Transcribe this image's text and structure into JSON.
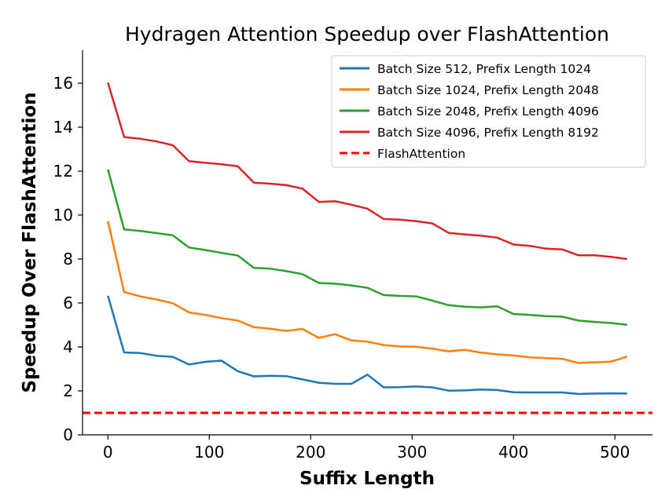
{
  "chart_data": {
    "type": "line",
    "title": "Hydragen Attention Speedup over FlashAttention",
    "xlabel": "Suffix Length",
    "ylabel": "Speedup Over FlashAttention",
    "xlim": [
      -25,
      537
    ],
    "ylim": [
      0,
      17.5
    ],
    "xticks": [
      0,
      100,
      200,
      300,
      400,
      500
    ],
    "yticks": [
      0,
      2,
      4,
      6,
      8,
      10,
      12,
      14,
      16
    ],
    "grid": false,
    "legend_position": "top-right",
    "x": [
      0,
      16,
      32,
      48,
      64,
      80,
      96,
      112,
      128,
      144,
      160,
      176,
      192,
      208,
      224,
      240,
      256,
      272,
      288,
      304,
      320,
      336,
      352,
      368,
      384,
      400,
      416,
      432,
      448,
      464,
      480,
      496,
      512
    ],
    "series": [
      {
        "name": "Batch Size 512, Prefix Length 1024",
        "color": "#1f77b4",
        "style": "solid",
        "values": [
          6.33,
          3.75,
          3.72,
          3.6,
          3.55,
          3.2,
          3.32,
          3.38,
          2.9,
          2.66,
          2.69,
          2.67,
          2.52,
          2.37,
          2.32,
          2.32,
          2.74,
          2.16,
          2.17,
          2.2,
          2.16,
          2.01,
          2.02,
          2.06,
          2.04,
          1.94,
          1.93,
          1.93,
          1.93,
          1.86,
          1.88,
          1.89,
          1.88
        ]
      },
      {
        "name": "Batch Size 1024, Prefix Length 2048",
        "color": "#ff7f0e",
        "style": "solid",
        "values": [
          9.72,
          6.5,
          6.3,
          6.16,
          5.99,
          5.57,
          5.46,
          5.31,
          5.2,
          4.9,
          4.83,
          4.73,
          4.82,
          4.41,
          4.58,
          4.3,
          4.24,
          4.09,
          4.02,
          4.01,
          3.92,
          3.8,
          3.87,
          3.74,
          3.66,
          3.61,
          3.53,
          3.49,
          3.46,
          3.27,
          3.3,
          3.33,
          3.56
        ]
      },
      {
        "name": "Batch Size 2048, Prefix Length 4096",
        "color": "#2ca02c",
        "style": "solid",
        "values": [
          12.07,
          9.35,
          9.28,
          9.18,
          9.08,
          8.52,
          8.41,
          8.28,
          8.16,
          7.6,
          7.56,
          7.45,
          7.31,
          6.91,
          6.88,
          6.8,
          6.69,
          6.36,
          6.32,
          6.3,
          6.11,
          5.9,
          5.83,
          5.8,
          5.85,
          5.5,
          5.46,
          5.4,
          5.38,
          5.2,
          5.14,
          5.09,
          5.01
        ]
      },
      {
        "name": "Batch Size 4096, Prefix Length 8192",
        "color": "#d62728",
        "style": "solid",
        "values": [
          16.03,
          13.55,
          13.47,
          13.35,
          13.18,
          12.45,
          12.38,
          12.31,
          12.22,
          11.47,
          11.43,
          11.36,
          11.2,
          10.6,
          10.63,
          10.47,
          10.29,
          9.82,
          9.79,
          9.72,
          9.62,
          9.19,
          9.12,
          9.06,
          8.97,
          8.66,
          8.6,
          8.47,
          8.44,
          8.17,
          8.17,
          8.1,
          8.0
        ]
      },
      {
        "name": "FlashAttention",
        "color": "#ff0000",
        "style": "dashed",
        "constant": 1.0
      }
    ]
  }
}
